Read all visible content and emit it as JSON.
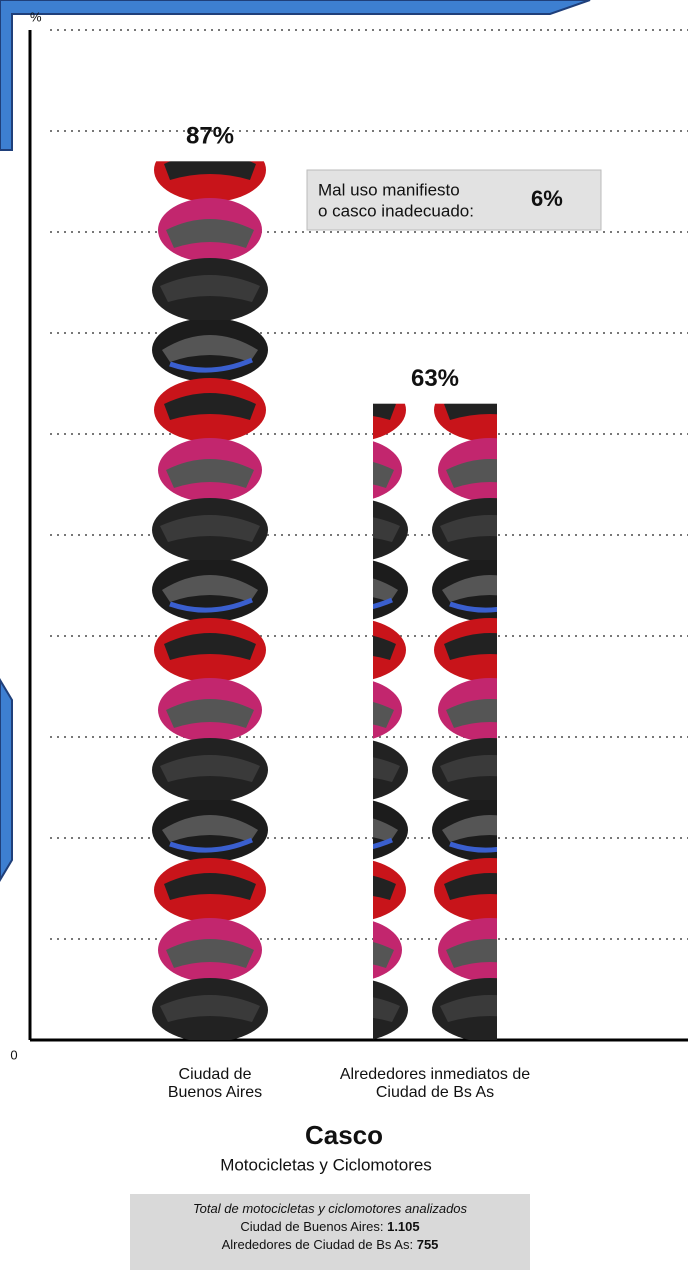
{
  "chart_data": {
    "type": "bar",
    "title": "Casco",
    "subtitle": "Motocicletas y Ciclomotores",
    "y_label": "%",
    "categories": [
      "Ciudad de Buenos Aires",
      "Alrededores inmediatos de Ciudad de Bs As"
    ],
    "values": [
      87,
      63
    ],
    "value_labels": [
      "87%",
      "63%"
    ],
    "ylim": [
      0,
      100
    ],
    "yticks": [
      0
    ],
    "gridlines": [
      10,
      20,
      30,
      40,
      50,
      60,
      70,
      80,
      90,
      100
    ],
    "grid": true,
    "annotation": {
      "text": [
        "Mal uso manifiesto",
        "o casco inadecuado:"
      ],
      "value": 6,
      "value_label": "6%"
    },
    "note": {
      "title": "Total de motocicletas y ciclomotores analizados",
      "items": [
        {
          "label": "Ciudad de Buenos Aires:",
          "value": 1105,
          "value_label": "1.105"
        },
        {
          "label": "Alrededores de Ciudad de Bs As:",
          "value": 755,
          "value_label": "755"
        }
      ]
    }
  }
}
